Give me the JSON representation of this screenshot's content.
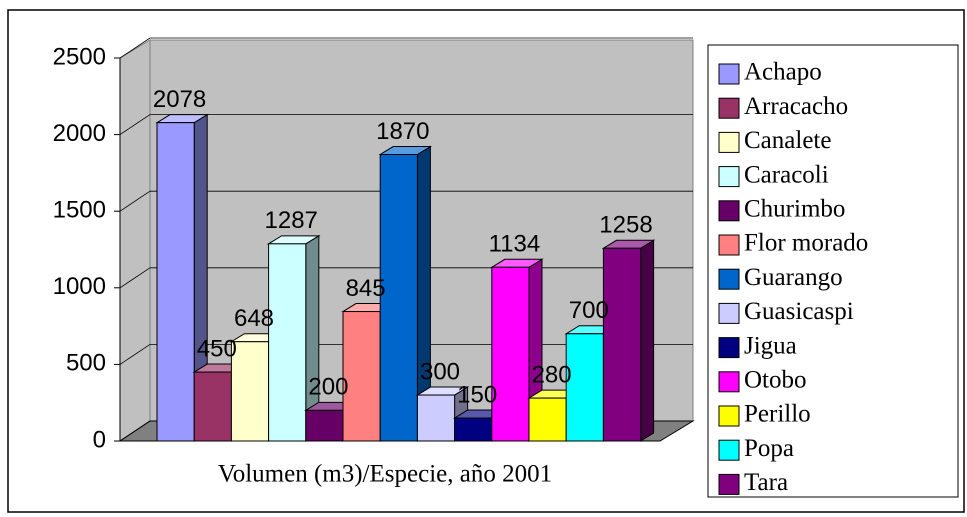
{
  "chart_data": {
    "type": "bar3d",
    "categories": [
      "Volumen (m3)/Especie, año 2001"
    ],
    "series": [
      {
        "name": "Achapo",
        "color": "#9999ff",
        "values": [
          2078
        ]
      },
      {
        "name": "Arracacho",
        "color": "#993366",
        "values": [
          450
        ]
      },
      {
        "name": "Canalete",
        "color": "#ffffcc",
        "values": [
          648
        ]
      },
      {
        "name": "Caracoli",
        "color": "#ccffff",
        "values": [
          1287
        ]
      },
      {
        "name": "Churimbo",
        "color": "#660066",
        "values": [
          200
        ]
      },
      {
        "name": "Flor morado",
        "color": "#ff8080",
        "values": [
          845
        ]
      },
      {
        "name": "Guarango",
        "color": "#0066cc",
        "values": [
          1870
        ]
      },
      {
        "name": "Guasicaspi",
        "color": "#ccccff",
        "values": [
          300
        ]
      },
      {
        "name": "Jigua",
        "color": "#000080",
        "values": [
          150
        ]
      },
      {
        "name": "Otobo",
        "color": "#ff00ff",
        "values": [
          1134
        ]
      },
      {
        "name": "Perillo",
        "color": "#ffff00",
        "values": [
          280
        ]
      },
      {
        "name": "Popa",
        "color": "#00ffff",
        "values": [
          700
        ]
      },
      {
        "name": "Tara",
        "color": "#800080",
        "values": [
          1258
        ]
      }
    ],
    "ylim": [
      0,
      2500
    ],
    "yticks": [
      0,
      500,
      1000,
      1500,
      2000,
      2500
    ],
    "grid": true,
    "legend": "right"
  }
}
